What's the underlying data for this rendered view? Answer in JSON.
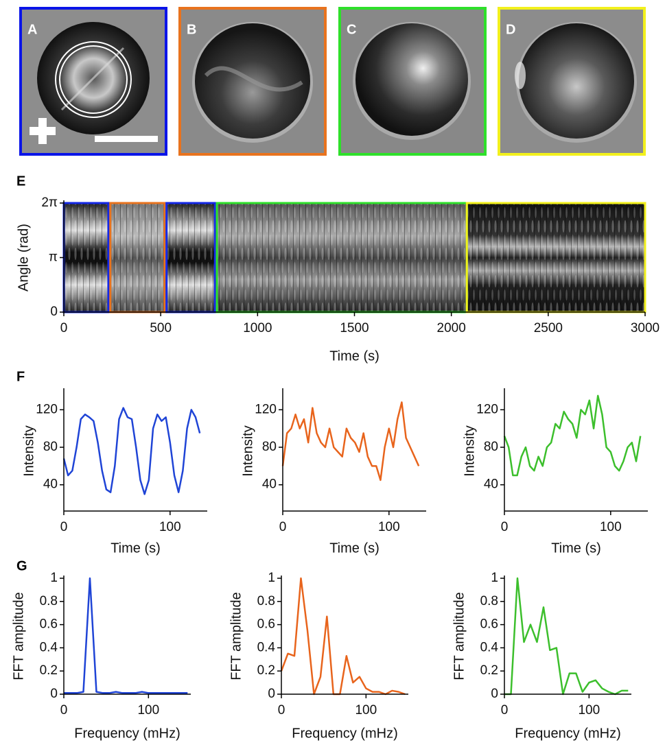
{
  "panel_labels": [
    "A",
    "B",
    "C",
    "D",
    "E",
    "F",
    "G"
  ],
  "chart_data": [
    {
      "type": "kymograph",
      "xlabel": "Time (s)",
      "ylabel": "Angle (rad)",
      "xlim": [
        0,
        3000
      ],
      "xticks": [
        0,
        500,
        1000,
        1500,
        2000,
        2500,
        3000
      ],
      "ylim": [
        0,
        6.28318
      ],
      "yticks": [
        0,
        {
          "value": 3.14159,
          "label": "π"
        },
        {
          "value": 6.28318,
          "label": "2π"
        }
      ],
      "segments": [
        {
          "start": 0,
          "end": 230,
          "color": "#1428e6"
        },
        {
          "start": 240,
          "end": 520,
          "color": "#e8731e"
        },
        {
          "start": 530,
          "end": 780,
          "color": "#1428e6"
        },
        {
          "start": 790,
          "end": 2080,
          "color": "#2ee02a"
        },
        {
          "start": 2080,
          "end": 3000,
          "color": "#f2f01c"
        }
      ]
    },
    {
      "type": "line",
      "xlabel": "Time (s)",
      "ylabel": "Intensity",
      "xlim": [
        0,
        135
      ],
      "xticks": [
        0,
        100
      ],
      "ylim": [
        12,
        140
      ],
      "yticks": [
        40,
        80,
        120
      ],
      "x": [
        0,
        4,
        8,
        12,
        16,
        20,
        24,
        28,
        32,
        36,
        40,
        44,
        48,
        52,
        56,
        60,
        64,
        68,
        72,
        76,
        80,
        84,
        88,
        92,
        96,
        100,
        104,
        108,
        112,
        116,
        120,
        124,
        128
      ],
      "series": [
        {
          "color": "#1f44d6",
          "values": [
            68,
            50,
            55,
            80,
            110,
            115,
            112,
            108,
            85,
            55,
            35,
            32,
            60,
            110,
            122,
            112,
            110,
            80,
            45,
            30,
            45,
            100,
            115,
            108,
            112,
            85,
            50,
            32,
            55,
            100,
            120,
            112,
            95
          ]
        }
      ]
    },
    {
      "type": "line",
      "xlabel": "Time (s)",
      "ylabel": "Intensity",
      "xlim": [
        0,
        135
      ],
      "xticks": [
        0,
        100
      ],
      "ylim": [
        12,
        140
      ],
      "yticks": [
        40,
        80,
        120
      ],
      "x": [
        0,
        4,
        8,
        12,
        16,
        20,
        24,
        28,
        32,
        36,
        40,
        44,
        48,
        52,
        56,
        60,
        64,
        68,
        72,
        76,
        80,
        84,
        88,
        92,
        96,
        100,
        104,
        108,
        112,
        116,
        120,
        124,
        128
      ],
      "series": [
        {
          "color": "#e8641c",
          "values": [
            60,
            95,
            100,
            115,
            100,
            110,
            85,
            122,
            95,
            85,
            80,
            100,
            80,
            75,
            70,
            100,
            90,
            85,
            75,
            95,
            70,
            60,
            60,
            45,
            80,
            100,
            80,
            110,
            128,
            90,
            80,
            70,
            60
          ]
        }
      ]
    },
    {
      "type": "line",
      "xlabel": "Time (s)",
      "ylabel": "Intensity",
      "xlim": [
        0,
        135
      ],
      "xticks": [
        0,
        100
      ],
      "ylim": [
        12,
        140
      ],
      "yticks": [
        40,
        80,
        120
      ],
      "x": [
        0,
        4,
        8,
        12,
        16,
        20,
        24,
        28,
        32,
        36,
        40,
        44,
        48,
        52,
        56,
        60,
        64,
        68,
        72,
        76,
        80,
        84,
        88,
        92,
        96,
        100,
        104,
        108,
        112,
        116,
        120,
        124,
        128
      ],
      "series": [
        {
          "color": "#3cbf2c",
          "values": [
            92,
            80,
            50,
            50,
            70,
            80,
            60,
            55,
            70,
            60,
            80,
            85,
            105,
            100,
            118,
            110,
            105,
            90,
            120,
            115,
            130,
            100,
            135,
            115,
            80,
            75,
            60,
            55,
            65,
            80,
            85,
            65,
            92
          ]
        }
      ]
    },
    {
      "type": "line",
      "xlabel": "Frequency (mHz)",
      "ylabel": "FFT amplitude",
      "xlim": [
        0,
        150
      ],
      "xticks": [
        0,
        100
      ],
      "ylim": [
        0,
        1
      ],
      "yticks": [
        0,
        0.2,
        0.4,
        0.6,
        0.8,
        1
      ],
      "x": [
        0,
        7.7,
        15.4,
        23.1,
        30.8,
        38.5,
        46.2,
        53.8,
        61.5,
        69.2,
        76.9,
        84.6,
        92.3,
        100,
        107.7,
        115.4,
        123.1,
        130.8,
        138.5,
        146.2
      ],
      "series": [
        {
          "color": "#1f44d6",
          "values": [
            0.01,
            0.01,
            0.01,
            0.02,
            1.0,
            0.02,
            0.01,
            0.01,
            0.02,
            0.01,
            0.01,
            0.01,
            0.02,
            0.01,
            0.01,
            0.01,
            0.01,
            0.01,
            0.01,
            0.01
          ]
        }
      ]
    },
    {
      "type": "line",
      "xlabel": "Frequency (mHz)",
      "ylabel": "FFT amplitude",
      "xlim": [
        0,
        150
      ],
      "xticks": [
        0,
        100
      ],
      "ylim": [
        0,
        1
      ],
      "yticks": [
        0,
        0.2,
        0.4,
        0.6,
        0.8,
        1
      ],
      "x": [
        0,
        7.7,
        15.4,
        23.1,
        30.8,
        38.5,
        46.2,
        53.8,
        61.5,
        69.2,
        76.9,
        84.6,
        92.3,
        100,
        107.7,
        115.4,
        123.1,
        130.8,
        138.5,
        146.2
      ],
      "series": [
        {
          "color": "#e8641c",
          "values": [
            0.2,
            0.35,
            0.33,
            1.0,
            0.55,
            0.0,
            0.15,
            0.67,
            0.0,
            0.0,
            0.33,
            0.1,
            0.15,
            0.05,
            0.02,
            0.02,
            0.0,
            0.03,
            0.02,
            0.0
          ]
        }
      ]
    },
    {
      "type": "line",
      "xlabel": "Frequency (mHz)",
      "ylabel": "FFT amplitude",
      "xlim": [
        0,
        150
      ],
      "xticks": [
        0,
        100
      ],
      "ylim": [
        0,
        1
      ],
      "yticks": [
        0,
        0.2,
        0.4,
        0.6,
        0.8,
        1
      ],
      "x": [
        0,
        7.7,
        15.4,
        23.1,
        30.8,
        38.5,
        46.2,
        53.8,
        61.5,
        69.2,
        76.9,
        84.6,
        92.3,
        100,
        107.7,
        115.4,
        123.1,
        130.8,
        138.5,
        146.2
      ],
      "series": [
        {
          "color": "#3cbf2c",
          "values": [
            0.0,
            0.0,
            1.0,
            0.45,
            0.6,
            0.45,
            0.75,
            0.38,
            0.4,
            0.0,
            0.18,
            0.18,
            0.02,
            0.1,
            0.12,
            0.05,
            0.02,
            0.0,
            0.03,
            0.03
          ]
        }
      ]
    }
  ]
}
